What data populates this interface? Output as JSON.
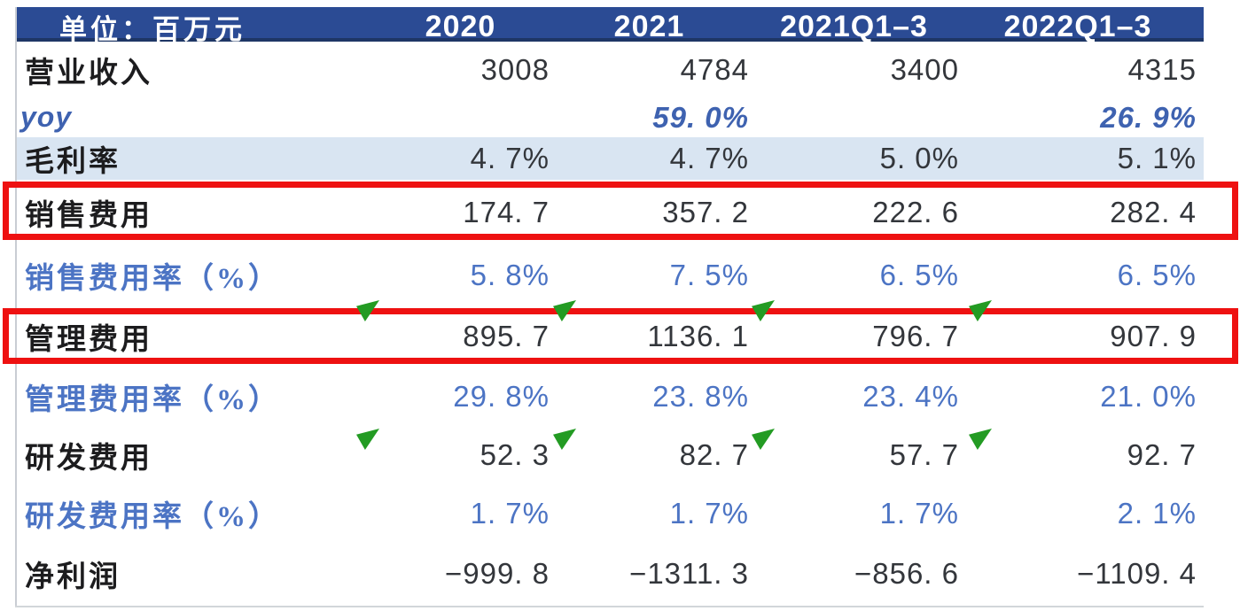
{
  "chart_data": {
    "type": "table",
    "title": "",
    "unit_label": "单位：百万元",
    "columns": [
      "2020",
      "2021",
      "2021Q1-3",
      "2022Q1-3"
    ],
    "series": [
      {
        "name": "营业收入",
        "values": [
          3008,
          4784,
          3400,
          4315
        ]
      },
      {
        "name": "yoy",
        "values": [
          null,
          59.0,
          null,
          26.9
        ],
        "unit": "%"
      },
      {
        "name": "毛利率",
        "values": [
          4.7,
          4.7,
          5.0,
          5.1
        ],
        "unit": "%"
      },
      {
        "name": "销售费用",
        "values": [
          174.7,
          357.2,
          222.6,
          282.4
        ]
      },
      {
        "name": "销售费用率（%）",
        "values": [
          5.8,
          7.5,
          6.5,
          6.5
        ],
        "unit": "%"
      },
      {
        "name": "管理费用",
        "values": [
          895.7,
          1136.1,
          796.7,
          907.9
        ]
      },
      {
        "name": "管理费用率（%）",
        "values": [
          29.8,
          23.8,
          23.4,
          21.0
        ],
        "unit": "%"
      },
      {
        "name": "研发费用",
        "values": [
          52.3,
          82.7,
          57.7,
          92.7
        ]
      },
      {
        "name": "研发费用率（%）",
        "values": [
          1.7,
          1.7,
          1.7,
          2.1
        ],
        "unit": "%"
      },
      {
        "name": "净利润",
        "values": [
          -999.8,
          -1311.3,
          -856.6,
          -1109.4
        ]
      }
    ],
    "highlighted_rows_red_box": [
      "销售费用",
      "管理费用"
    ],
    "highlighted_row_blue_fill": "毛利率"
  },
  "table": {
    "unit_label": "单位：百万元",
    "columns": [
      "2020",
      "2021",
      "2021Q1–3",
      "2022Q1–3"
    ],
    "rows": [
      {
        "label": "营业收入",
        "kind": "normal",
        "values": [
          "3008",
          "4784",
          "3400",
          "4315"
        ]
      },
      {
        "label": "yoy",
        "kind": "yoy",
        "values": [
          "",
          "59. 0%",
          "",
          "26. 9%"
        ]
      },
      {
        "label": "毛利率",
        "kind": "highlight-blue",
        "values": [
          "4. 7%",
          "4. 7%",
          "5. 0%",
          "5. 1%"
        ]
      },
      {
        "label": "销售费用",
        "kind": "normal",
        "values": [
          "174. 7",
          "357. 2",
          "222. 6",
          "282. 4"
        ]
      },
      {
        "label": "销售费用率（%）",
        "kind": "rate",
        "values": [
          "5. 8%",
          "7. 5%",
          "6. 5%",
          "6. 5%"
        ]
      },
      {
        "label": "管理费用",
        "kind": "normal",
        "values": [
          "895. 7",
          "1136. 1",
          "796. 7",
          "907. 9"
        ]
      },
      {
        "label": "管理费用率（%）",
        "kind": "rate",
        "values": [
          "29. 8%",
          "23. 8%",
          "23. 4%",
          "21. 0%"
        ]
      },
      {
        "label": "研发费用",
        "kind": "normal",
        "values": [
          "52. 3",
          "82. 7",
          "57. 7",
          "92. 7"
        ]
      },
      {
        "label": "研发费用率（%）",
        "kind": "rate",
        "values": [
          "1. 7%",
          "1. 7%",
          "1. 7%",
          "2. 1%"
        ]
      },
      {
        "label": "净利润",
        "kind": "normal",
        "values": [
          "−999. 8",
          "−1311. 3",
          "−856. 6",
          "−1109. 4"
        ]
      }
    ]
  },
  "colors": {
    "header_bg": "#2b4b94",
    "header_border": "#1e3665",
    "highlight_row_bg": "#d9e5f2",
    "rate_text_blue": "#4c74c4",
    "red_box": "#ee1111",
    "comment_flag_green": "#239b23"
  }
}
